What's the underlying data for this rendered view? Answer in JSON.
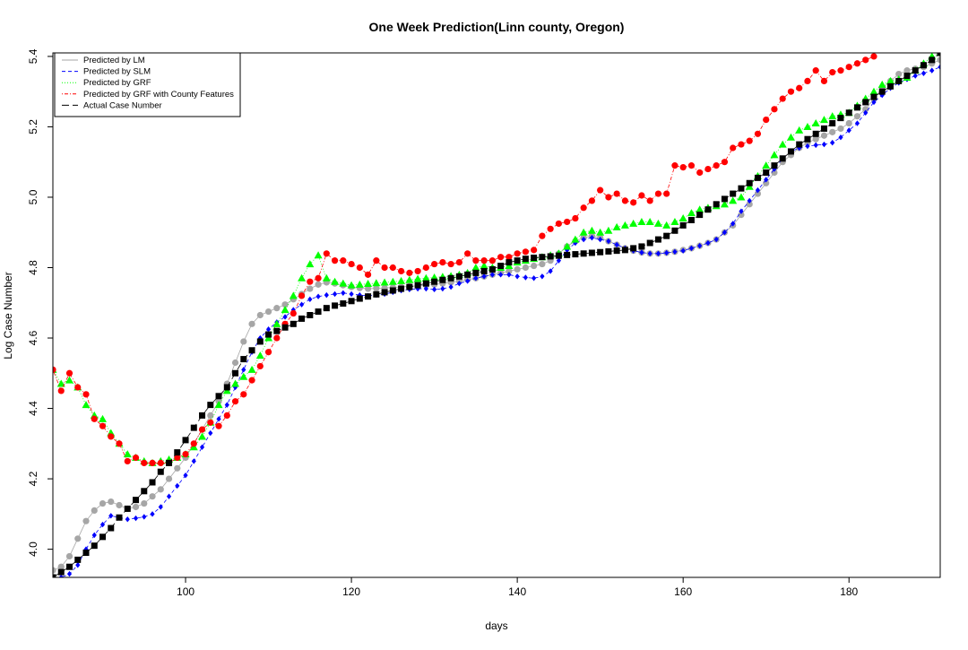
{
  "chart_data": {
    "type": "scatter",
    "title": "One Week Prediction(Linn county, Oregon)",
    "xlabel": "days",
    "ylabel": "Log Case Number",
    "xlim": [
      84,
      191
    ],
    "ylim": [
      3.92,
      5.41
    ],
    "x_ticks": [
      100,
      120,
      140,
      160,
      180
    ],
    "y_ticks": [
      4.0,
      4.2,
      4.4,
      4.6,
      4.8,
      5.0,
      5.2,
      5.4
    ],
    "grid": false,
    "legend_position": "top-left",
    "series": [
      {
        "name": "Predicted by LM",
        "color": "#a6a6a6",
        "marker": "circle",
        "line": "solid",
        "x": [
          84,
          85,
          86,
          87,
          88,
          89,
          90,
          91,
          92,
          93,
          94,
          95,
          96,
          97,
          98,
          99,
          100,
          101,
          102,
          103,
          104,
          105,
          106,
          107,
          108,
          109,
          110,
          111,
          112,
          113,
          114,
          115,
          116,
          117,
          118,
          119,
          120,
          121,
          122,
          123,
          124,
          125,
          126,
          127,
          128,
          129,
          130,
          131,
          132,
          133,
          134,
          135,
          136,
          137,
          138,
          139,
          140,
          141,
          142,
          143,
          144,
          145,
          146,
          147,
          148,
          149,
          150,
          151,
          152,
          153,
          154,
          155,
          156,
          157,
          158,
          159,
          160,
          161,
          162,
          163,
          164,
          165,
          166,
          167,
          168,
          169,
          170,
          171,
          172,
          173,
          174,
          175,
          176,
          177,
          178,
          179,
          180,
          181,
          182,
          183,
          184,
          185,
          186,
          187,
          188,
          189,
          190,
          191
        ],
        "y": [
          3.94,
          3.95,
          3.98,
          4.03,
          4.08,
          4.11,
          4.13,
          4.135,
          4.125,
          4.115,
          4.12,
          4.13,
          4.15,
          4.17,
          4.2,
          4.23,
          4.26,
          4.3,
          4.34,
          4.38,
          4.42,
          4.47,
          4.53,
          4.59,
          4.64,
          4.665,
          4.675,
          4.685,
          4.695,
          4.71,
          4.725,
          4.74,
          4.752,
          4.758,
          4.755,
          4.75,
          4.745,
          4.742,
          4.74,
          4.741,
          4.742,
          4.744,
          4.745,
          4.747,
          4.748,
          4.75,
          4.752,
          4.755,
          4.758,
          4.762,
          4.766,
          4.77,
          4.775,
          4.78,
          4.785,
          4.79,
          4.795,
          4.8,
          4.805,
          4.81,
          4.82,
          4.84,
          4.86,
          4.875,
          4.885,
          4.89,
          4.885,
          4.875,
          4.865,
          4.855,
          4.848,
          4.843,
          4.84,
          4.84,
          4.842,
          4.845,
          4.85,
          4.855,
          4.862,
          4.87,
          4.88,
          4.9,
          4.92,
          4.95,
          4.98,
          5.01,
          5.04,
          5.07,
          5.1,
          5.12,
          5.14,
          5.155,
          5.165,
          5.175,
          5.185,
          5.195,
          5.21,
          5.23,
          5.25,
          5.28,
          5.31,
          5.33,
          5.35,
          5.36,
          5.365,
          5.37,
          5.38,
          5.39
        ]
      },
      {
        "name": "Predicted by SLM",
        "color": "#0000ff",
        "marker": "diamond",
        "line": "dashed",
        "x": [
          84,
          85,
          86,
          87,
          88,
          89,
          90,
          91,
          92,
          93,
          94,
          95,
          96,
          97,
          98,
          99,
          100,
          101,
          102,
          103,
          104,
          105,
          106,
          107,
          108,
          109,
          110,
          111,
          112,
          113,
          114,
          115,
          116,
          117,
          118,
          119,
          120,
          121,
          122,
          123,
          124,
          125,
          126,
          127,
          128,
          129,
          130,
          131,
          132,
          133,
          134,
          135,
          136,
          137,
          138,
          139,
          140,
          141,
          142,
          143,
          144,
          145,
          146,
          147,
          148,
          149,
          150,
          151,
          152,
          153,
          154,
          155,
          156,
          157,
          158,
          159,
          160,
          161,
          162,
          163,
          164,
          165,
          166,
          167,
          168,
          169,
          170,
          171,
          172,
          173,
          174,
          175,
          176,
          177,
          178,
          179,
          180,
          181,
          182,
          183,
          184,
          185,
          186,
          187,
          188,
          189,
          190,
          191
        ],
        "y": [
          3.9,
          3.92,
          3.93,
          3.955,
          4.0,
          4.04,
          4.07,
          4.095,
          4.09,
          4.085,
          4.088,
          4.092,
          4.1,
          4.12,
          4.15,
          4.18,
          4.21,
          4.25,
          4.29,
          4.33,
          4.37,
          4.41,
          4.46,
          4.51,
          4.56,
          4.6,
          4.625,
          4.645,
          4.66,
          4.68,
          4.695,
          4.71,
          4.718,
          4.722,
          4.725,
          4.728,
          4.725,
          4.722,
          4.72,
          4.722,
          4.725,
          4.73,
          4.735,
          4.738,
          4.74,
          4.74,
          4.738,
          4.74,
          4.745,
          4.755,
          4.762,
          4.77,
          4.775,
          4.78,
          4.78,
          4.78,
          4.775,
          4.772,
          4.77,
          4.775,
          4.79,
          4.82,
          4.85,
          4.87,
          4.88,
          4.885,
          4.88,
          4.875,
          4.865,
          4.855,
          4.848,
          4.843,
          4.84,
          4.84,
          4.842,
          4.845,
          4.848,
          4.855,
          4.862,
          4.87,
          4.88,
          4.9,
          4.925,
          4.96,
          4.99,
          5.02,
          5.05,
          5.08,
          5.11,
          5.13,
          5.14,
          5.145,
          5.148,
          5.15,
          5.155,
          5.17,
          5.19,
          5.21,
          5.24,
          5.27,
          5.29,
          5.31,
          5.325,
          5.335,
          5.345,
          5.352,
          5.36,
          5.37
        ]
      },
      {
        "name": "Predicted by GRF",
        "color": "#00ff00",
        "marker": "triangle",
        "line": "dotted",
        "x": [
          84,
          85,
          86,
          87,
          88,
          89,
          90,
          91,
          92,
          93,
          94,
          95,
          96,
          97,
          98,
          99,
          100,
          101,
          102,
          103,
          104,
          105,
          106,
          107,
          108,
          109,
          110,
          111,
          112,
          113,
          114,
          115,
          116,
          117,
          118,
          119,
          120,
          121,
          122,
          123,
          124,
          125,
          126,
          127,
          128,
          129,
          130,
          131,
          132,
          133,
          134,
          135,
          136,
          137,
          138,
          139,
          140,
          141,
          142,
          143,
          144,
          145,
          146,
          147,
          148,
          149,
          150,
          151,
          152,
          153,
          154,
          155,
          156,
          157,
          158,
          159,
          160,
          161,
          162,
          163,
          164,
          165,
          166,
          167,
          168,
          169,
          170,
          171,
          172,
          173,
          174,
          175,
          176,
          177,
          178,
          179,
          180,
          181,
          182,
          183,
          184,
          185,
          186,
          187,
          188,
          189,
          190,
          191
        ],
        "y": [
          4.51,
          4.47,
          4.48,
          4.46,
          4.41,
          4.38,
          4.37,
          4.33,
          4.3,
          4.27,
          4.26,
          4.25,
          4.245,
          4.25,
          4.255,
          4.26,
          4.27,
          4.29,
          4.32,
          4.36,
          4.41,
          4.45,
          4.47,
          4.49,
          4.51,
          4.55,
          4.6,
          4.64,
          4.68,
          4.72,
          4.77,
          4.81,
          4.835,
          4.77,
          4.76,
          4.755,
          4.75,
          4.752,
          4.754,
          4.756,
          4.758,
          4.76,
          4.762,
          4.765,
          4.768,
          4.77,
          4.772,
          4.774,
          4.776,
          4.78,
          4.785,
          4.8,
          4.805,
          4.8,
          4.8,
          4.805,
          4.815,
          4.82,
          4.825,
          4.83,
          4.835,
          4.84,
          4.86,
          4.88,
          4.9,
          4.905,
          4.9,
          4.905,
          4.915,
          4.92,
          4.925,
          4.93,
          4.93,
          4.925,
          4.92,
          4.93,
          4.94,
          4.955,
          4.965,
          4.97,
          4.975,
          4.98,
          4.99,
          5.0,
          5.03,
          5.06,
          5.09,
          5.12,
          5.15,
          5.17,
          5.19,
          5.2,
          5.21,
          5.22,
          5.23,
          5.235,
          5.24,
          5.26,
          5.28,
          5.3,
          5.32,
          5.33,
          5.335,
          5.34,
          5.36,
          5.38,
          5.4,
          5.41
        ]
      },
      {
        "name": "Predicted by GRF with County Features",
        "color": "#ff0000",
        "marker": "circle",
        "line": "dotdash",
        "x": [
          84,
          85,
          86,
          87,
          88,
          89,
          90,
          91,
          92,
          93,
          94,
          95,
          96,
          97,
          98,
          99,
          100,
          101,
          102,
          103,
          104,
          105,
          106,
          107,
          108,
          109,
          110,
          111,
          112,
          113,
          114,
          115,
          116,
          117,
          118,
          119,
          120,
          121,
          122,
          123,
          124,
          125,
          126,
          127,
          128,
          129,
          130,
          131,
          132,
          133,
          134,
          135,
          136,
          137,
          138,
          139,
          140,
          141,
          142,
          143,
          144,
          145,
          146,
          147,
          148,
          149,
          150,
          151,
          152,
          153,
          154,
          155,
          156,
          157,
          158,
          159,
          160,
          161,
          162,
          163,
          164,
          165,
          166,
          167,
          168,
          169,
          170,
          171,
          172,
          173,
          174,
          175,
          176,
          177,
          178,
          179,
          180,
          181,
          182,
          183
        ],
        "y": [
          4.51,
          4.45,
          4.5,
          4.46,
          4.44,
          4.37,
          4.35,
          4.32,
          4.3,
          4.25,
          4.26,
          4.245,
          4.245,
          4.245,
          4.245,
          4.26,
          4.27,
          4.3,
          4.34,
          4.36,
          4.35,
          4.38,
          4.42,
          4.44,
          4.48,
          4.52,
          4.56,
          4.6,
          4.64,
          4.67,
          4.72,
          4.76,
          4.77,
          4.84,
          4.82,
          4.82,
          4.81,
          4.8,
          4.78,
          4.82,
          4.8,
          4.8,
          4.79,
          4.785,
          4.79,
          4.8,
          4.81,
          4.815,
          4.81,
          4.815,
          4.84,
          4.82,
          4.82,
          4.82,
          4.83,
          4.83,
          4.84,
          4.845,
          4.85,
          4.89,
          4.91,
          4.925,
          4.93,
          4.94,
          4.97,
          4.99,
          5.02,
          5.0,
          5.01,
          4.99,
          4.985,
          5.005,
          4.99,
          5.01,
          5.01,
          5.09,
          5.085,
          5.09,
          5.07,
          5.08,
          5.09,
          5.1,
          5.14,
          5.15,
          5.16,
          5.18,
          5.22,
          5.25,
          5.28,
          5.3,
          5.31,
          5.33,
          5.36,
          5.33,
          5.355,
          5.36,
          5.37,
          5.38,
          5.39,
          5.4
        ]
      },
      {
        "name": "Actual Case Number",
        "color": "#000000",
        "marker": "square",
        "line": "longdash",
        "x": [
          84,
          85,
          86,
          87,
          88,
          89,
          90,
          91,
          92,
          93,
          94,
          95,
          96,
          97,
          98,
          99,
          100,
          101,
          102,
          103,
          104,
          105,
          106,
          107,
          108,
          109,
          110,
          111,
          112,
          113,
          114,
          115,
          116,
          117,
          118,
          119,
          120,
          121,
          122,
          123,
          124,
          125,
          126,
          127,
          128,
          129,
          130,
          131,
          132,
          133,
          134,
          135,
          136,
          137,
          138,
          139,
          140,
          141,
          142,
          143,
          144,
          145,
          146,
          147,
          148,
          149,
          150,
          151,
          152,
          153,
          154,
          155,
          156,
          157,
          158,
          159,
          160,
          161,
          162,
          163,
          164,
          165,
          166,
          167,
          168,
          169,
          170,
          171,
          172,
          173,
          174,
          175,
          176,
          177,
          178,
          179,
          180,
          181,
          182,
          183,
          184,
          185,
          186,
          187,
          188,
          189,
          190,
          191
        ],
        "y": [
          3.92,
          3.935,
          3.95,
          3.97,
          3.99,
          4.01,
          4.035,
          4.06,
          4.09,
          4.115,
          4.14,
          4.165,
          4.19,
          4.22,
          4.245,
          4.275,
          4.31,
          4.345,
          4.38,
          4.41,
          4.435,
          4.46,
          4.5,
          4.54,
          4.565,
          4.59,
          4.61,
          4.62,
          4.63,
          4.64,
          4.655,
          4.665,
          4.675,
          4.685,
          4.692,
          4.698,
          4.705,
          4.712,
          4.718,
          4.724,
          4.73,
          4.735,
          4.74,
          4.745,
          4.75,
          4.755,
          4.76,
          4.765,
          4.77,
          4.775,
          4.78,
          4.785,
          4.79,
          4.795,
          4.805,
          4.815,
          4.82,
          4.825,
          4.828,
          4.83,
          4.832,
          4.834,
          4.836,
          4.838,
          4.84,
          4.842,
          4.844,
          4.846,
          4.848,
          4.85,
          4.855,
          4.86,
          4.87,
          4.88,
          4.89,
          4.905,
          4.92,
          4.935,
          4.95,
          4.965,
          4.98,
          4.995,
          5.01,
          5.025,
          5.04,
          5.055,
          5.07,
          5.09,
          5.11,
          5.13,
          5.15,
          5.165,
          5.18,
          5.195,
          5.21,
          5.225,
          5.24,
          5.255,
          5.27,
          5.285,
          5.3,
          5.315,
          5.33,
          5.345,
          5.36,
          5.375,
          5.39,
          5.41
        ]
      }
    ]
  }
}
